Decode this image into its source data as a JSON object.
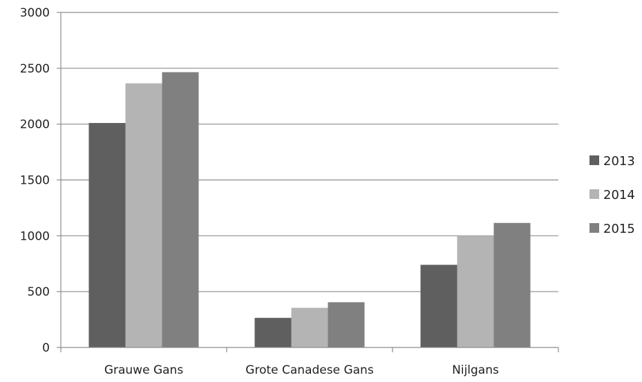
{
  "chart_data": {
    "type": "bar",
    "title": "",
    "xlabel": "",
    "ylabel": "",
    "categories": [
      "Grauwe Gans",
      "Grote Canadese Gans",
      "Nijlgans"
    ],
    "series": [
      {
        "name": "2013",
        "color": "#5f5f5f",
        "values": [
          2010,
          265,
          740
        ]
      },
      {
        "name": "2014",
        "color": "#b4b4b4",
        "values": [
          2365,
          355,
          1000
        ]
      },
      {
        "name": "2015",
        "color": "#808080",
        "values": [
          2465,
          405,
          1115
        ]
      }
    ],
    "ylim": [
      0,
      3000
    ],
    "yticks": [
      "0",
      "500",
      "1000",
      "1500",
      "2000",
      "2500",
      "3000"
    ],
    "grid": true,
    "legend_position": "right"
  }
}
